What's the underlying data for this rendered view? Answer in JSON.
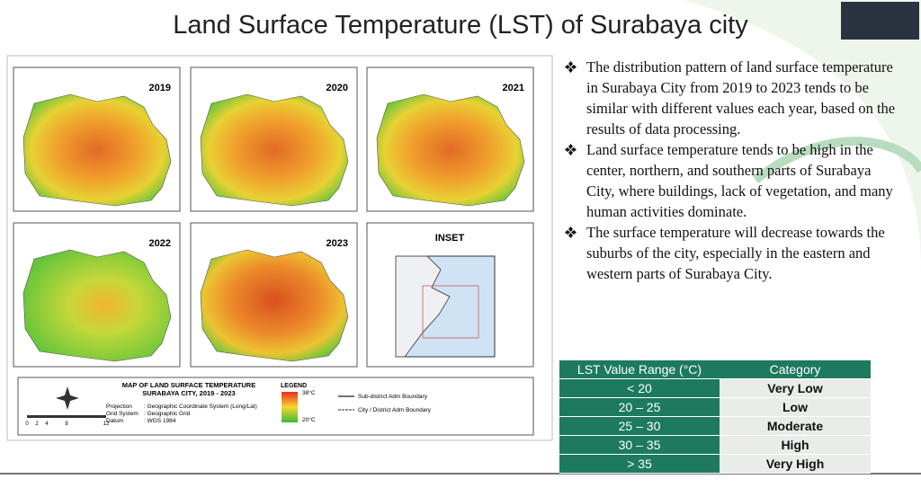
{
  "title": "Land Surface Temperature (LST) of Surabaya city",
  "map_panel": {
    "maps": [
      {
        "year": "2019"
      },
      {
        "year": "2020"
      },
      {
        "year": "2021"
      },
      {
        "year": "2022"
      },
      {
        "year": "2023"
      }
    ],
    "inset_title": "INSET",
    "map_title": [
      "MAP OF LAND SURFACE TEMPERATURE",
      "SURABAYA CITY, 2019 - 2023"
    ],
    "info": [
      [
        "Projection",
        ":  Geographic Coordinate System (Long/Lat)"
      ],
      [
        "Grid System",
        ":  Geographic Grid"
      ],
      [
        "Datum",
        ":  WGS 1984"
      ]
    ],
    "legend": {
      "title": "LEGEND",
      "high": "38°C",
      "low": "20°C",
      "lines": [
        "Sub-district Adm Boundary",
        "City / District Adm Boundary"
      ]
    },
    "scale": [
      "0",
      "2",
      "4",
      "8",
      "12"
    ]
  },
  "bullets": [
    "The distribution pattern of land surface temperature in Surabaya City from 2019 to 2023 tends to be similar with different values each year, based on the results of data processing.",
    "Land surface temperature tends to be high in the center, northern, and southern parts of Surabaya City, where buildings, lack of vegetation, and many human activities dominate.",
    "The surface temperature will decrease towards the suburbs of the city, especially in the eastern and western parts of Surabaya City."
  ],
  "table": {
    "header": [
      "LST Value Range (°C)",
      "Category"
    ],
    "rows": [
      [
        "< 20",
        "Very Low"
      ],
      [
        "20 – 25",
        "Low"
      ],
      [
        "25 – 30",
        "Moderate"
      ],
      [
        "30 – 35",
        "High"
      ],
      [
        "> 35",
        "Very High"
      ]
    ]
  }
}
